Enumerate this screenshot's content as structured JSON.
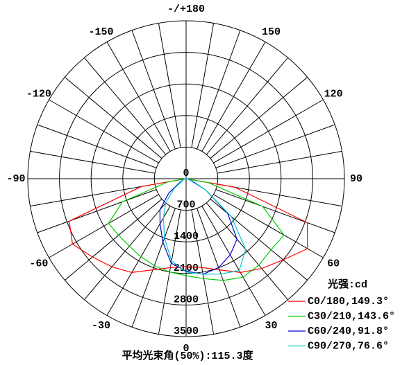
{
  "chart_data": {
    "type": "polar",
    "title": "平均光束角(50%):115.3度",
    "legend_title": "光强:cd",
    "legend_position": "lower right",
    "x": [
      -90,
      -80,
      -70,
      -60,
      -50,
      -40,
      -30,
      -20,
      -10,
      0,
      10,
      20,
      30,
      40,
      50,
      60,
      70,
      80,
      90
    ],
    "rlim": [
      0,
      3500
    ],
    "rticks": [
      0,
      700,
      1400,
      2100,
      2800,
      3500
    ],
    "angle_ticks": [
      {
        "value": -180,
        "label": "-/+180"
      },
      -150,
      -120,
      -90,
      -60,
      -30,
      0,
      30,
      60,
      90,
      120,
      150
    ],
    "series": [
      {
        "name": "C0/180,149.3°",
        "color": "#ff0000",
        "values": [
          0,
          1000,
          2750,
          2900,
          2700,
          2550,
          2400,
          2150,
          2000,
          1950,
          2000,
          2150,
          2400,
          2600,
          2800,
          3100,
          2850,
          1100,
          0
        ]
      },
      {
        "name": "C30/210,143.6°",
        "color": "#00cc00",
        "values": [
          0,
          400,
          1500,
          1980,
          1950,
          1950,
          2000,
          2050,
          2100,
          2150,
          2250,
          2400,
          2520,
          2500,
          2450,
          2500,
          1800,
          500,
          0
        ]
      },
      {
        "name": "C60/240,91.8°",
        "color": "#0000cc",
        "values": [
          0,
          30,
          60,
          150,
          500,
          900,
          1150,
          1500,
          1900,
          2050,
          2150,
          2100,
          1950,
          1750,
          1200,
          500,
          100,
          30,
          0
        ]
      },
      {
        "name": "C90/270,76.6°",
        "color": "#00cccc",
        "values": [
          0,
          30,
          50,
          100,
          350,
          700,
          1000,
          1400,
          1850,
          2070,
          2150,
          2250,
          2350,
          2050,
          1300,
          500,
          150,
          30,
          0
        ]
      }
    ]
  }
}
